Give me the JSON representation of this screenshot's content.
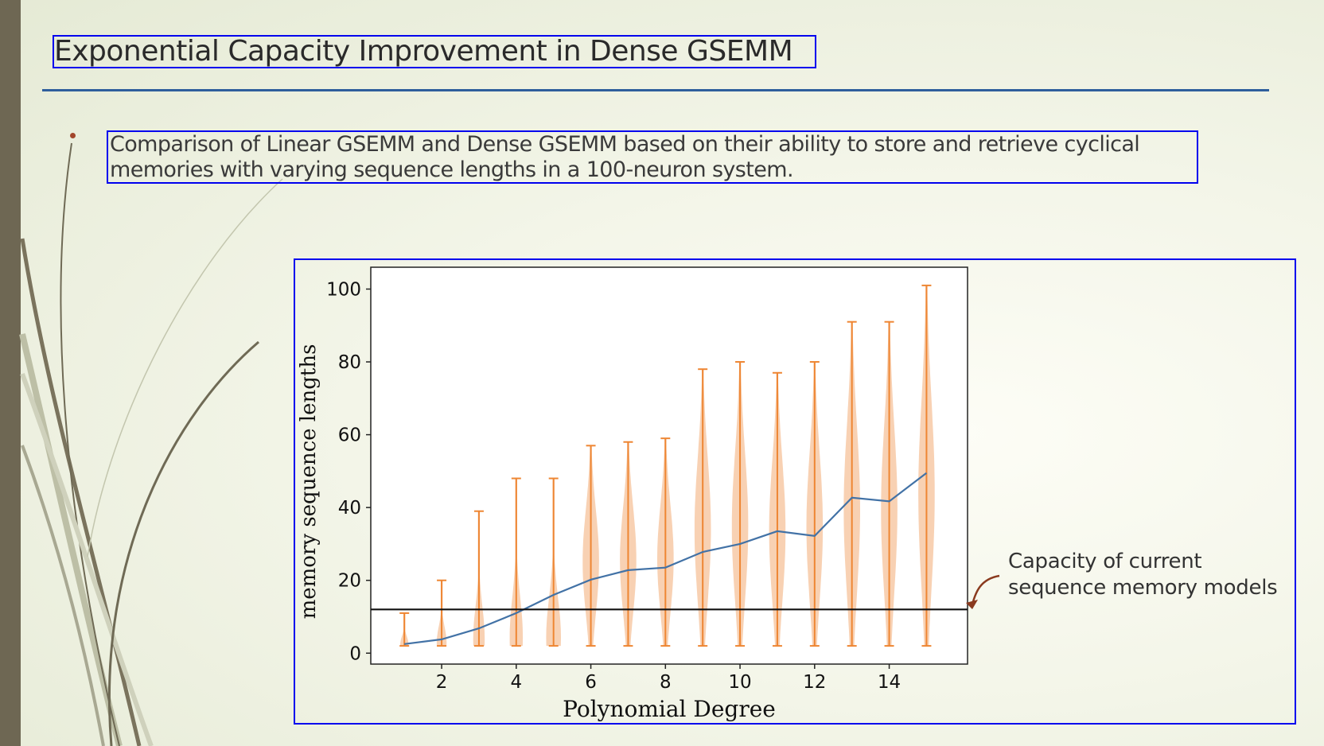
{
  "slide": {
    "title": "Exponential Capacity Improvement in Dense GSEMM",
    "bullet": "Comparison of Linear GSEMM and Dense GSEMM based on their ability to store and retrieve cyclical memories with varying sequence lengths in a 100-neuron system."
  },
  "annotation": {
    "line1": "Capacity of current",
    "line2": "sequence memory models"
  },
  "colors": {
    "mean_line": "#4272a6",
    "violin_fill": "#f7c9a6",
    "violin_edge": "#ee8633",
    "baseline": "#111111",
    "arrow": "#8a3a1e"
  },
  "chart_data": {
    "type": "violin",
    "xlabel": "Polynomial Degree",
    "ylabel": "memory sequence lengths",
    "xlim": [
      0.1,
      16.1
    ],
    "ylim": [
      -3,
      106
    ],
    "x_ticks": [
      "2",
      "4",
      "6",
      "8",
      "10",
      "12",
      "14"
    ],
    "y_ticks": [
      "0",
      "20",
      "40",
      "60",
      "80",
      "100"
    ],
    "baseline_value": 12,
    "series": [
      {
        "name": "mean",
        "x": [
          1,
          2,
          3,
          4,
          5,
          6,
          7,
          8,
          9,
          10,
          11,
          12,
          13,
          14,
          15
        ],
        "values": [
          2.5,
          3.8,
          6.8,
          11,
          16,
          20.2,
          22.8,
          23.5,
          27.8,
          30,
          33.5,
          32.2,
          42.7,
          41.7,
          49.5
        ]
      }
    ],
    "violins": [
      {
        "x": 1,
        "min": 2,
        "max": 11
      },
      {
        "x": 2,
        "min": 2,
        "max": 20
      },
      {
        "x": 3,
        "min": 2,
        "max": 39
      },
      {
        "x": 4,
        "min": 2,
        "max": 48
      },
      {
        "x": 5,
        "min": 2,
        "max": 48
      },
      {
        "x": 6,
        "min": 2,
        "max": 57
      },
      {
        "x": 7,
        "min": 2,
        "max": 58
      },
      {
        "x": 8,
        "min": 2,
        "max": 59
      },
      {
        "x": 9,
        "min": 2,
        "max": 78
      },
      {
        "x": 10,
        "min": 2,
        "max": 80
      },
      {
        "x": 11,
        "min": 2,
        "max": 77
      },
      {
        "x": 12,
        "min": 2,
        "max": 80
      },
      {
        "x": 13,
        "min": 2,
        "max": 91
      },
      {
        "x": 14,
        "min": 2,
        "max": 91
      },
      {
        "x": 15,
        "min": 2,
        "max": 101
      }
    ]
  }
}
